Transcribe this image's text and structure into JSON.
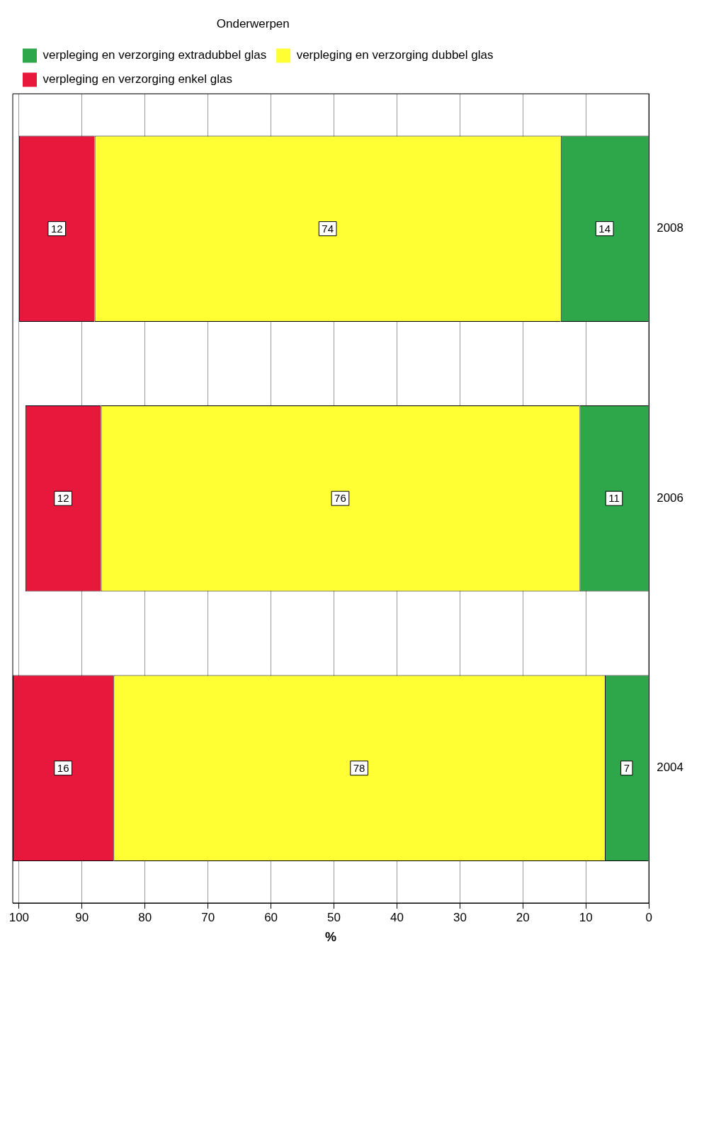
{
  "chart_data": {
    "type": "bar",
    "orientation": "horizontal",
    "stacked": true,
    "xlabel": "%",
    "legend_title": "Onderwerpen",
    "legend": "top left",
    "grid": "x",
    "data_labels": true,
    "categories": [
      "2008",
      "2006",
      "2004"
    ],
    "xlim": [
      101,
      0
    ],
    "xticks": [
      0,
      10,
      20,
      30,
      40,
      50,
      60,
      70,
      80,
      90,
      100
    ],
    "series": [
      {
        "name": "verpleging en verzorging extradubbel glas",
        "color": "#2ea64a",
        "values": [
          14,
          11,
          7
        ]
      },
      {
        "name": "verpleging en verzorging dubbel glas",
        "color": "#ffff33",
        "values": [
          74,
          76,
          78
        ]
      },
      {
        "name": "verpleging en verzorging enkel glas",
        "color": "#e8173c",
        "values": [
          12,
          12,
          16
        ]
      }
    ]
  }
}
